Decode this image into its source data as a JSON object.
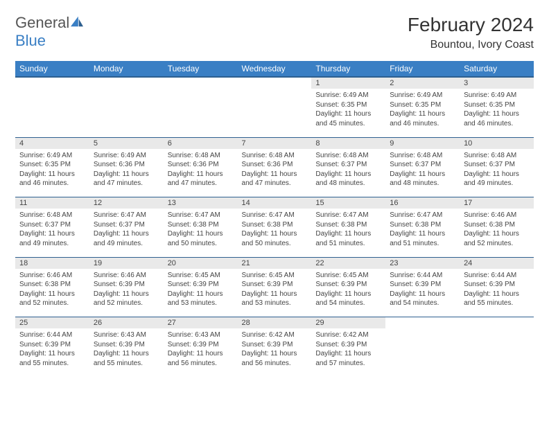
{
  "brand": {
    "part1": "General",
    "part2": "Blue"
  },
  "title": "February 2024",
  "location": "Bountou, Ivory Coast",
  "colors": {
    "header_bg": "#3a7fc4",
    "header_text": "#ffffff",
    "daynum_bg": "#e9e9e9",
    "rule": "#2d5f8f",
    "text": "#444444",
    "page_bg": "#ffffff"
  },
  "day_headers": [
    "Sunday",
    "Monday",
    "Tuesday",
    "Wednesday",
    "Thursday",
    "Friday",
    "Saturday"
  ],
  "weeks": [
    [
      null,
      null,
      null,
      null,
      {
        "n": "1",
        "sr": "6:49 AM",
        "ss": "6:35 PM",
        "dl": "11 hours and 45 minutes."
      },
      {
        "n": "2",
        "sr": "6:49 AM",
        "ss": "6:35 PM",
        "dl": "11 hours and 46 minutes."
      },
      {
        "n": "3",
        "sr": "6:49 AM",
        "ss": "6:35 PM",
        "dl": "11 hours and 46 minutes."
      }
    ],
    [
      {
        "n": "4",
        "sr": "6:49 AM",
        "ss": "6:35 PM",
        "dl": "11 hours and 46 minutes."
      },
      {
        "n": "5",
        "sr": "6:49 AM",
        "ss": "6:36 PM",
        "dl": "11 hours and 47 minutes."
      },
      {
        "n": "6",
        "sr": "6:48 AM",
        "ss": "6:36 PM",
        "dl": "11 hours and 47 minutes."
      },
      {
        "n": "7",
        "sr": "6:48 AM",
        "ss": "6:36 PM",
        "dl": "11 hours and 47 minutes."
      },
      {
        "n": "8",
        "sr": "6:48 AM",
        "ss": "6:37 PM",
        "dl": "11 hours and 48 minutes."
      },
      {
        "n": "9",
        "sr": "6:48 AM",
        "ss": "6:37 PM",
        "dl": "11 hours and 48 minutes."
      },
      {
        "n": "10",
        "sr": "6:48 AM",
        "ss": "6:37 PM",
        "dl": "11 hours and 49 minutes."
      }
    ],
    [
      {
        "n": "11",
        "sr": "6:48 AM",
        "ss": "6:37 PM",
        "dl": "11 hours and 49 minutes."
      },
      {
        "n": "12",
        "sr": "6:47 AM",
        "ss": "6:37 PM",
        "dl": "11 hours and 49 minutes."
      },
      {
        "n": "13",
        "sr": "6:47 AM",
        "ss": "6:38 PM",
        "dl": "11 hours and 50 minutes."
      },
      {
        "n": "14",
        "sr": "6:47 AM",
        "ss": "6:38 PM",
        "dl": "11 hours and 50 minutes."
      },
      {
        "n": "15",
        "sr": "6:47 AM",
        "ss": "6:38 PM",
        "dl": "11 hours and 51 minutes."
      },
      {
        "n": "16",
        "sr": "6:47 AM",
        "ss": "6:38 PM",
        "dl": "11 hours and 51 minutes."
      },
      {
        "n": "17",
        "sr": "6:46 AM",
        "ss": "6:38 PM",
        "dl": "11 hours and 52 minutes."
      }
    ],
    [
      {
        "n": "18",
        "sr": "6:46 AM",
        "ss": "6:38 PM",
        "dl": "11 hours and 52 minutes."
      },
      {
        "n": "19",
        "sr": "6:46 AM",
        "ss": "6:39 PM",
        "dl": "11 hours and 52 minutes."
      },
      {
        "n": "20",
        "sr": "6:45 AM",
        "ss": "6:39 PM",
        "dl": "11 hours and 53 minutes."
      },
      {
        "n": "21",
        "sr": "6:45 AM",
        "ss": "6:39 PM",
        "dl": "11 hours and 53 minutes."
      },
      {
        "n": "22",
        "sr": "6:45 AM",
        "ss": "6:39 PM",
        "dl": "11 hours and 54 minutes."
      },
      {
        "n": "23",
        "sr": "6:44 AM",
        "ss": "6:39 PM",
        "dl": "11 hours and 54 minutes."
      },
      {
        "n": "24",
        "sr": "6:44 AM",
        "ss": "6:39 PM",
        "dl": "11 hours and 55 minutes."
      }
    ],
    [
      {
        "n": "25",
        "sr": "6:44 AM",
        "ss": "6:39 PM",
        "dl": "11 hours and 55 minutes."
      },
      {
        "n": "26",
        "sr": "6:43 AM",
        "ss": "6:39 PM",
        "dl": "11 hours and 55 minutes."
      },
      {
        "n": "27",
        "sr": "6:43 AM",
        "ss": "6:39 PM",
        "dl": "11 hours and 56 minutes."
      },
      {
        "n": "28",
        "sr": "6:42 AM",
        "ss": "6:39 PM",
        "dl": "11 hours and 56 minutes."
      },
      {
        "n": "29",
        "sr": "6:42 AM",
        "ss": "6:39 PM",
        "dl": "11 hours and 57 minutes."
      },
      null,
      null
    ]
  ],
  "labels": {
    "sunrise": "Sunrise:",
    "sunset": "Sunset:",
    "daylight": "Daylight:"
  }
}
